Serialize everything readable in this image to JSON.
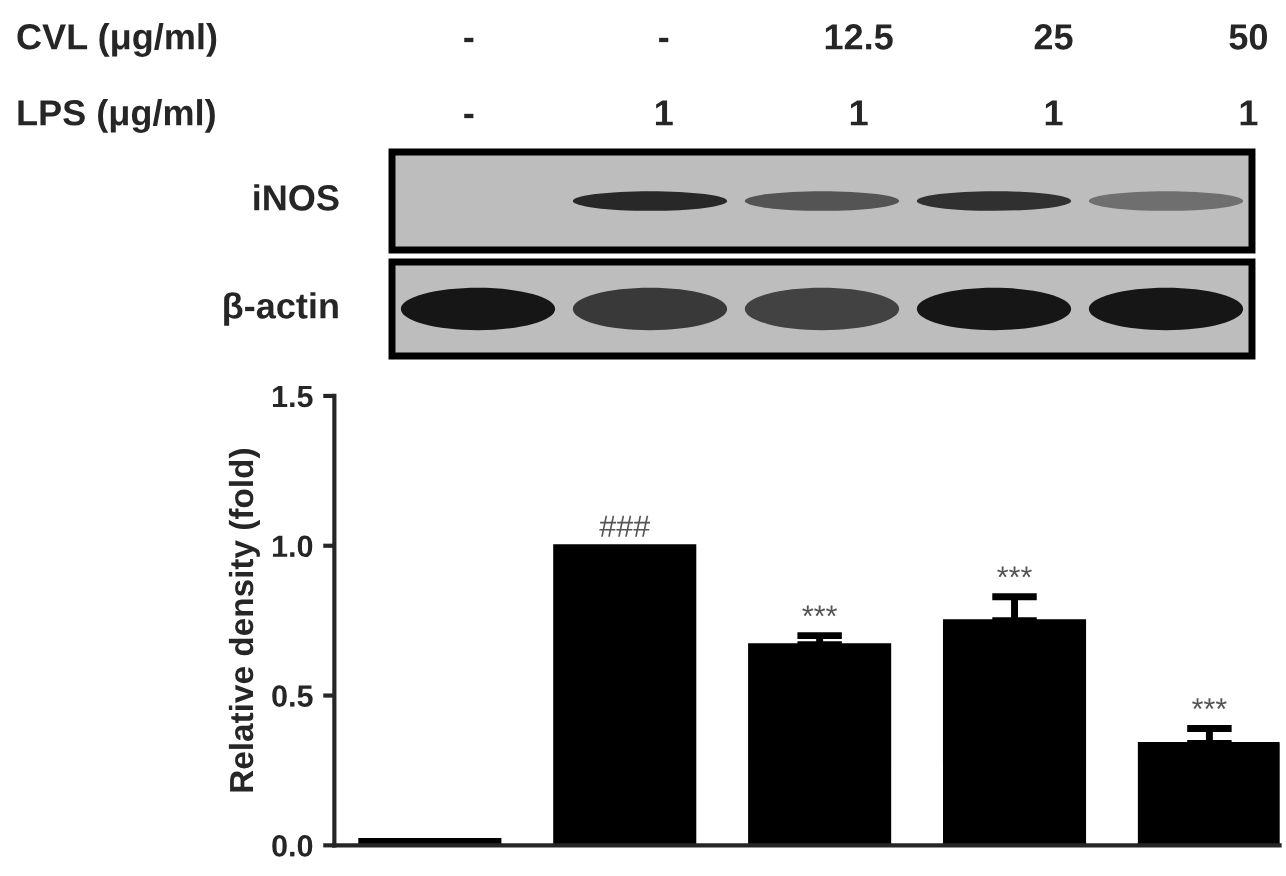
{
  "chart_data": {
    "type": "bar",
    "ylabel": "Relative density (fold)",
    "categories": [
      null,
      null,
      null,
      null,
      null
    ],
    "values": [
      0.02,
      1.0,
      0.67,
      0.75,
      0.34
    ],
    "errors": [
      null,
      null,
      [
        0.67,
        0.7
      ],
      [
        0.75,
        0.83
      ],
      [
        0.34,
        0.39
      ]
    ],
    "value_labels": [
      null,
      "###",
      "***",
      "***",
      "***"
    ],
    "color": "#000000",
    "ylim": [
      0,
      1.5
    ],
    "yticks": [
      {
        "value": 0,
        "label": "0.0"
      },
      {
        "value": 0.5,
        "label": "0.5"
      },
      {
        "value": 1.0,
        "label": "1.0"
      },
      {
        "value": 1.5,
        "label": "1.5"
      }
    ],
    "grid": false,
    "annotations": [
      "CVL (μg/ml)",
      "-",
      "-",
      "12.5",
      "25",
      "50",
      "LPS (μg/ml)",
      "-",
      "1",
      "1",
      "1",
      "1",
      "iNOS",
      "β-actin"
    ]
  }
}
